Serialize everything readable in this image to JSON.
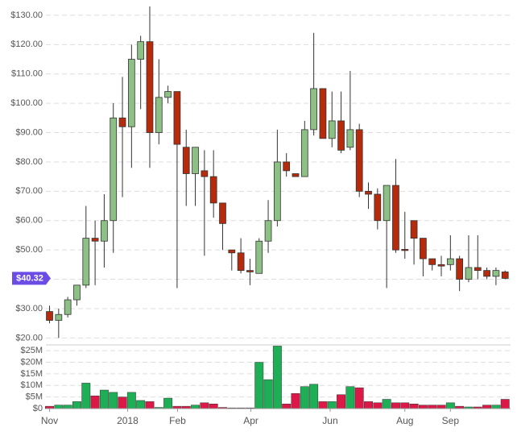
{
  "chart_data": {
    "type": "candlestick",
    "x": [
      0,
      1,
      2,
      3,
      4,
      5,
      6,
      7,
      8,
      9,
      10,
      11,
      12,
      13,
      14,
      15,
      16,
      17,
      18,
      19,
      20,
      21,
      22,
      23,
      24,
      25,
      26,
      27,
      28,
      29,
      30,
      31,
      32,
      33,
      34,
      35,
      36,
      37,
      38,
      39,
      40,
      41,
      42,
      43,
      44,
      45,
      46,
      47,
      48,
      49,
      50
    ],
    "open": [
      29,
      26,
      28,
      33,
      38,
      54,
      53,
      60,
      95,
      92,
      115,
      121,
      90,
      102,
      104,
      85,
      76,
      77,
      75,
      66,
      50,
      49,
      43,
      42,
      53,
      60,
      80,
      76,
      75,
      91,
      105,
      88,
      94,
      85,
      91,
      70,
      69,
      60,
      72,
      50.2,
      60,
      54,
      47,
      45,
      45,
      47,
      40,
      44,
      43,
      41,
      42.5
    ],
    "high": [
      31,
      30,
      34,
      38,
      65,
      60,
      69,
      100,
      109,
      120,
      123,
      133,
      115,
      106,
      104,
      91,
      85,
      84,
      84,
      66,
      50,
      54,
      47,
      54,
      67,
      91,
      83,
      76,
      94,
      124,
      105,
      104,
      104,
      111,
      93,
      73,
      71,
      72,
      81,
      63,
      60,
      54,
      47,
      48,
      55,
      48,
      55,
      55,
      44,
      44,
      43
    ],
    "low": [
      25,
      20,
      27,
      31,
      37,
      38,
      44,
      49,
      68,
      78,
      98,
      78,
      86,
      100,
      37,
      65,
      65,
      48,
      61,
      50,
      43,
      42,
      38,
      42,
      49,
      58,
      75,
      75,
      75,
      89,
      88,
      85,
      83,
      84,
      68,
      64,
      57,
      37,
      49,
      47,
      45,
      41,
      43,
      41,
      43,
      36,
      39,
      40,
      40,
      38,
      40
    ],
    "close": [
      26,
      28,
      33,
      38,
      54,
      53,
      60,
      95,
      92,
      115,
      121,
      90,
      102,
      104,
      86,
      76,
      85,
      75,
      66,
      59,
      49,
      43,
      42.5,
      53,
      60,
      80,
      77,
      75,
      91,
      105,
      88,
      94,
      84,
      91,
      70,
      69,
      60,
      72,
      50,
      49.8,
      54,
      47,
      45,
      44.5,
      47,
      40,
      44,
      43,
      41,
      43,
      40.3
    ],
    "volume": [
      1,
      1.5,
      1.5,
      3,
      11,
      5.5,
      8,
      7,
      5,
      7,
      3.5,
      3,
      0.5,
      4.5,
      1,
      1,
      1.5,
      2.5,
      2,
      0.5,
      0.3,
      0.3,
      0.3,
      20,
      12.5,
      27,
      2,
      6.5,
      9.5,
      10.5,
      3,
      3,
      6,
      9.5,
      9,
      3,
      2.5,
      4,
      2.5,
      2.5,
      2,
      1.5,
      1.5,
      1.5,
      2.5,
      1,
      0.7,
      0.7,
      1.5,
      1.5,
      4
    ],
    "xlim": [
      -0.4,
      50.6
    ],
    "xticks": [
      {
        "value": 0,
        "label": "Nov"
      },
      {
        "value": 8.57,
        "label": "2018"
      },
      {
        "value": 14.05,
        "label": "Feb"
      },
      {
        "value": 22.1,
        "label": "Apr"
      },
      {
        "value": 30.8,
        "label": "Jun"
      },
      {
        "value": 39,
        "label": "Aug"
      },
      {
        "value": 44,
        "label": "Sep"
      }
    ],
    "ylim": [
      17.9,
      135.2
    ],
    "yticks": [
      {
        "value": 20,
        "label": "$20.00"
      },
      {
        "value": 30,
        "label": "$30.00"
      },
      {
        "value": 40,
        "label": "$40.00"
      },
      {
        "value": 50,
        "label": "$50.00"
      },
      {
        "value": 60,
        "label": "$60.00"
      },
      {
        "value": 70,
        "label": "$70.00"
      },
      {
        "value": 80,
        "label": "$80.00"
      },
      {
        "value": 90,
        "label": "$90.00"
      },
      {
        "value": 100,
        "label": "$100.00"
      },
      {
        "value": 110,
        "label": "$110.00"
      },
      {
        "value": 120,
        "label": "$120.00"
      },
      {
        "value": 130,
        "label": "$130.00"
      }
    ],
    "volume_ylim": [
      0,
      27.5
    ],
    "volume_yticks": [
      {
        "value": 0,
        "label": "$0"
      },
      {
        "value": 5,
        "label": "$5M"
      },
      {
        "value": 10,
        "label": "$10M"
      },
      {
        "value": 15,
        "label": "$15M"
      },
      {
        "value": 20,
        "label": "$20M"
      },
      {
        "value": 25,
        "label": "$25M"
      }
    ],
    "last_price": {
      "value": 40.32,
      "label": "$40.32"
    },
    "grid": true,
    "colors": {
      "up": "#8cc084",
      "down": "#b52b0c",
      "volume_up": "#1eae55",
      "volume_down": "#dc1847",
      "badge": "#6b4de6"
    }
  }
}
